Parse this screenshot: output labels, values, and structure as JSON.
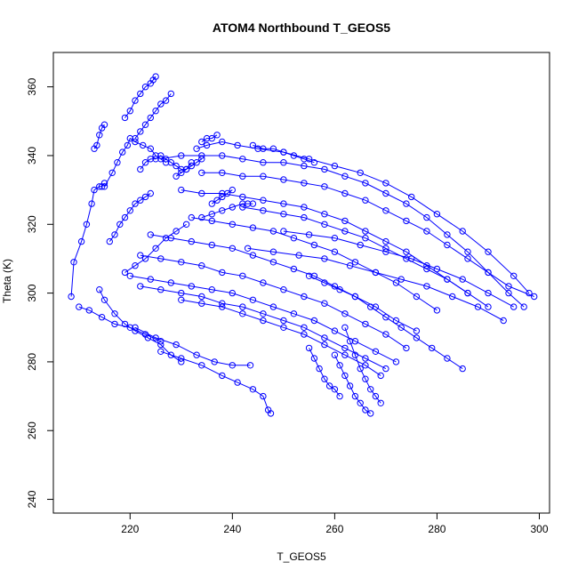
{
  "chart_data": {
    "type": "line",
    "title": "ATOM4 Northbound T_GEOS5",
    "xlabel": "T_GEOS5",
    "ylabel": "Theta (K)",
    "xlim": [
      205,
      302
    ],
    "ylim": [
      236,
      370
    ],
    "xticks": [
      220,
      240,
      260,
      280,
      300
    ],
    "yticks": [
      240,
      260,
      280,
      300,
      320,
      340,
      360
    ],
    "grid": false,
    "series_color": "#0000ff",
    "series": [
      {
        "x": [
          208.5,
          209.0,
          210.5,
          211.5,
          212.5,
          213.0,
          214.0,
          214.5,
          215.0
        ],
        "y": [
          299,
          309,
          315,
          320,
          326,
          330,
          331,
          331,
          332
        ]
      },
      {
        "x": [
          213.0,
          213.5,
          214.0,
          214.5,
          215.0
        ],
        "y": [
          342,
          343,
          346,
          348,
          349
        ]
      },
      {
        "x": [
          210.0,
          212.0,
          214.5,
          217.0,
          220.0,
          223.0,
          226.0
        ],
        "y": [
          296,
          295,
          293,
          291,
          290,
          288,
          286
        ]
      },
      {
        "x": [
          214.0,
          215.0,
          217.0,
          219.0,
          221.0,
          223.5,
          226.0,
          228.0,
          230.0
        ],
        "y": [
          301,
          298,
          294,
          291,
          289,
          287,
          285,
          282,
          280
        ]
      },
      {
        "x": [
          221.0,
          225.0,
          229.0,
          233.0,
          236.5,
          240.0,
          243.5
        ],
        "y": [
          290,
          287,
          285,
          282,
          280,
          279,
          279
        ]
      },
      {
        "x": [
          226.0,
          230.0,
          234.0,
          238.0,
          241.0,
          244.0,
          246.0,
          247.0,
          247.5
        ],
        "y": [
          283,
          281,
          279,
          276,
          274,
          272,
          270,
          266,
          265
        ]
      },
      {
        "x": [
          215.0,
          216.5,
          217.5,
          218.5,
          219.5,
          220.0,
          221.0,
          222.5,
          224.0,
          225.0,
          227.0
        ],
        "y": [
          331,
          335,
          338,
          341,
          343,
          345,
          344,
          343,
          342,
          340,
          338
        ]
      },
      {
        "x": [
          219.0,
          220.0,
          221.0,
          222.0,
          223.0,
          224.0,
          224.5,
          225.0
        ],
        "y": [
          351,
          353,
          356,
          358,
          360,
          361,
          362,
          363
        ]
      },
      {
        "x": [
          221.0,
          222.0,
          223.0,
          224.0,
          225.0,
          226.0,
          227.0,
          228.0
        ],
        "y": [
          345,
          347,
          349,
          351,
          353,
          355,
          356,
          358
        ]
      },
      {
        "x": [
          222.0,
          223.0,
          224.0,
          225.0,
          226.0,
          227.0,
          228.0,
          229.0,
          230.0,
          231.0,
          232.0
        ],
        "y": [
          336,
          338,
          339,
          339,
          340,
          339,
          338,
          337,
          336,
          336,
          338
        ]
      },
      {
        "x": [
          216.0,
          217.0,
          218.0,
          219.0,
          220.0,
          221.0,
          222.0,
          223.0,
          224.0
        ],
        "y": [
          315,
          317,
          320,
          322,
          324,
          326,
          327,
          328,
          329
        ]
      },
      {
        "x": [
          219.0,
          221.0,
          223.0,
          225.0,
          227.0,
          229.0,
          231.0
        ],
        "y": [
          306,
          308,
          310,
          313,
          316,
          318,
          320
        ]
      },
      {
        "x": [
          233.0,
          235.0,
          238.0,
          241.0,
          245.0,
          250.0,
          255.0,
          260.0,
          265.0,
          270.0,
          275.0,
          280.0,
          285.0,
          290.0,
          295.0,
          298.0
        ],
        "y": [
          342,
          343,
          344,
          343,
          342,
          341,
          339,
          337,
          335,
          332,
          328,
          323,
          318,
          312,
          305,
          300
        ]
      },
      {
        "x": [
          226.0,
          230.0,
          234.0,
          238.0,
          242.0,
          246.0,
          250.0,
          254.0,
          258.0,
          262.0,
          266.0,
          270.0,
          274.0,
          278.0,
          282.0,
          286.0,
          290.0,
          294.0,
          297.0
        ],
        "y": [
          339,
          340,
          340,
          340,
          339,
          338,
          338,
          337,
          336,
          334,
          332,
          329,
          326,
          322,
          317,
          312,
          306,
          300,
          296
        ]
      },
      {
        "x": [
          234.0,
          238.0,
          242.0,
          246.0,
          250.0,
          254.0,
          258.0,
          262.0,
          266.0,
          270.0,
          274.0,
          278.0,
          282.0,
          286.0,
          290.0,
          294.0,
          299.0
        ],
        "y": [
          335,
          335,
          334,
          334,
          333,
          332,
          331,
          329,
          327,
          324,
          321,
          318,
          314,
          310,
          306,
          302,
          299
        ]
      },
      {
        "x": [
          230.0,
          234.0,
          238.0,
          242.0,
          246.0,
          250.0,
          254.0,
          258.0,
          262.0,
          266.0,
          270.0,
          274.0,
          278.0,
          282.0,
          286.0
        ],
        "y": [
          330,
          329,
          329,
          328,
          327,
          326,
          325,
          323,
          321,
          318,
          315,
          312,
          308,
          304,
          300
        ]
      },
      {
        "x": [
          242.0,
          246.0,
          250.0,
          254.0,
          258.0,
          262.0,
          266.0,
          270.0,
          274.0,
          278.0,
          282.0,
          286.0,
          290.0
        ],
        "y": [
          325,
          324,
          323,
          322,
          320,
          318,
          316,
          313,
          310,
          307,
          304,
          300,
          296
        ]
      },
      {
        "x": [
          232.0,
          236.0,
          240.0,
          244.0,
          248.0,
          252.0,
          256.0,
          260.0,
          264.0,
          268.0,
          272.0,
          276.0,
          280.0
        ],
        "y": [
          322,
          321,
          320,
          319,
          318,
          316,
          314,
          312,
          309,
          306,
          303,
          299,
          295
        ]
      },
      {
        "x": [
          224.0,
          228.0,
          232.0,
          236.0,
          240.0,
          244.0,
          248.0,
          252.0,
          256.0,
          260.0,
          264.0,
          268.0,
          272.0,
          276.0
        ],
        "y": [
          317,
          316,
          315,
          314,
          313,
          311,
          309,
          307,
          305,
          302,
          299,
          296,
          292,
          289
        ]
      },
      {
        "x": [
          222.0,
          226.0,
          230.0,
          234.0,
          238.0,
          242.0,
          246.0,
          250.0,
          254.0,
          258.0,
          262.0,
          266.0,
          270.0,
          274.0
        ],
        "y": [
          311,
          310,
          309,
          308,
          306,
          305,
          303,
          301,
          299,
          297,
          294,
          291,
          288,
          284
        ]
      },
      {
        "x": [
          220.0,
          224.0,
          228.0,
          232.0,
          236.0,
          240.0,
          244.0,
          248.0,
          252.0,
          256.0,
          260.0,
          264.0,
          268.0,
          272.0
        ],
        "y": [
          305,
          304,
          303,
          302,
          301,
          300,
          298,
          296,
          294,
          292,
          289,
          286,
          283,
          280
        ]
      },
      {
        "x": [
          222.0,
          226.0,
          230.0,
          234.0,
          238.0,
          242.0,
          246.0,
          250.0,
          254.0,
          258.0,
          262.0,
          266.0,
          270.0
        ],
        "y": [
          302,
          301,
          300,
          299,
          297,
          296,
          294,
          292,
          290,
          287,
          284,
          281,
          278
        ]
      },
      {
        "x": [
          230.0,
          234.0,
          238.0,
          242.0,
          246.0,
          250.0,
          254.0,
          258.0,
          262.0,
          266.0,
          269.0
        ],
        "y": [
          298,
          297,
          296,
          294,
          292,
          290,
          288,
          285,
          282,
          279,
          276
        ]
      },
      {
        "x": [
          243.0,
          248.0,
          253.0,
          258.0,
          263.0,
          268.0,
          273.0,
          278.0,
          283.0,
          288.0,
          293.0
        ],
        "y": [
          313,
          312,
          311,
          310,
          308,
          306,
          304,
          302,
          299,
          296,
          292
        ]
      },
      {
        "x": [
          250.0,
          255.0,
          260.0,
          265.0,
          270.0,
          275.0,
          280.0,
          285.0,
          290.0,
          295.0
        ],
        "y": [
          318,
          317,
          316,
          314,
          312,
          310,
          307,
          304,
          300,
          296
        ]
      },
      {
        "x": [
          255.0,
          258.0,
          261.0,
          264.0,
          267.0,
          270.0,
          273.0,
          276.0,
          279.0,
          282.0,
          285.0
        ],
        "y": [
          305,
          303,
          301,
          299,
          296,
          293,
          290,
          287,
          284,
          281,
          278
        ]
      },
      {
        "x": [
          255.0,
          256.0,
          257.0,
          258.0,
          259.0,
          260.0,
          261.0
        ],
        "y": [
          284,
          281,
          278,
          275,
          273,
          272,
          270
        ]
      },
      {
        "x": [
          260.0,
          261.0,
          262.0,
          263.0,
          264.0,
          265.0,
          266.0,
          267.0
        ],
        "y": [
          282,
          279,
          276,
          273,
          270,
          268,
          266,
          265
        ]
      },
      {
        "x": [
          262.0,
          263.0,
          264.0,
          265.0,
          266.0,
          267.0,
          268.0,
          269.0
        ],
        "y": [
          290,
          286,
          282,
          278,
          275,
          272,
          270,
          268
        ]
      },
      {
        "x": [
          234.0,
          236.0,
          238.0,
          240.0,
          242.0,
          243.0,
          244.0
        ],
        "y": [
          322,
          323,
          324,
          325,
          326,
          326,
          326
        ]
      },
      {
        "x": [
          236.0,
          237.0,
          238.0,
          239.0,
          240.0
        ],
        "y": [
          326,
          327,
          328,
          329,
          330
        ]
      },
      {
        "x": [
          234.0,
          235.0,
          236.0,
          237.0
        ],
        "y": [
          344,
          345,
          345,
          346
        ]
      },
      {
        "x": [
          229.0,
          230.0,
          231.0,
          232.0,
          233.0,
          234.0
        ],
        "y": [
          334,
          335,
          336,
          337,
          338,
          339
        ]
      },
      {
        "x": [
          244.0,
          246.0,
          248.0,
          250.0,
          252.0,
          254.0,
          256.0
        ],
        "y": [
          343,
          342,
          342,
          341,
          340,
          339,
          338
        ]
      }
    ]
  }
}
